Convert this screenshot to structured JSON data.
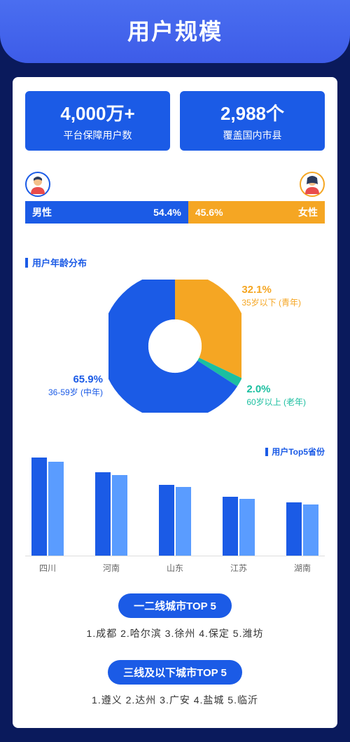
{
  "header": {
    "title": "用户规模"
  },
  "stats": [
    {
      "value": "4,000万+",
      "label": "平台保障用户数"
    },
    {
      "value": "2,988个",
      "label": "覆盖国内市县"
    }
  ],
  "gender": {
    "male": {
      "label": "男性",
      "pct": 54.4,
      "text": "54.4%",
      "color": "#1b5be6"
    },
    "female": {
      "label": "女性",
      "pct": 45.6,
      "text": "45.6%",
      "color": "#f5a623"
    }
  },
  "age_chart": {
    "title": "用户年龄分布",
    "type": "donut",
    "hole_ratio": 0.4,
    "background": "#ffffff",
    "slices": [
      {
        "key": "young",
        "pct": 32.1,
        "pct_text": "32.1%",
        "desc": "35岁以下 (青年)",
        "color": "#f5a623"
      },
      {
        "key": "elder",
        "pct": 2.0,
        "pct_text": "2.0%",
        "desc": "60岁以上 (老年)",
        "color": "#1bbfa0"
      },
      {
        "key": "middle",
        "pct": 65.9,
        "pct_text": "65.9%",
        "desc": "36-59岁 (中年)",
        "color": "#1b5be6"
      }
    ]
  },
  "province_chart": {
    "title": "用户Top5省份",
    "type": "grouped-bar",
    "max": 100,
    "bar_colors": [
      "#1b5be6",
      "#5a9cff"
    ],
    "categories": [
      "四川",
      "河南",
      "山东",
      "江苏",
      "湖南"
    ],
    "series_a": [
      100,
      85,
      72,
      60,
      54
    ],
    "series_b": [
      96,
      82,
      70,
      58,
      52
    ]
  },
  "tier12": {
    "pill": "一二线城市TOP 5",
    "list": "1.成都  2.哈尔滨  3.徐州  4.保定  5.潍坊"
  },
  "tier3": {
    "pill": "三线及以下城市TOP 5",
    "list": "1.遵义  2.达州  3.广安  4.盐城  5.临沂"
  }
}
